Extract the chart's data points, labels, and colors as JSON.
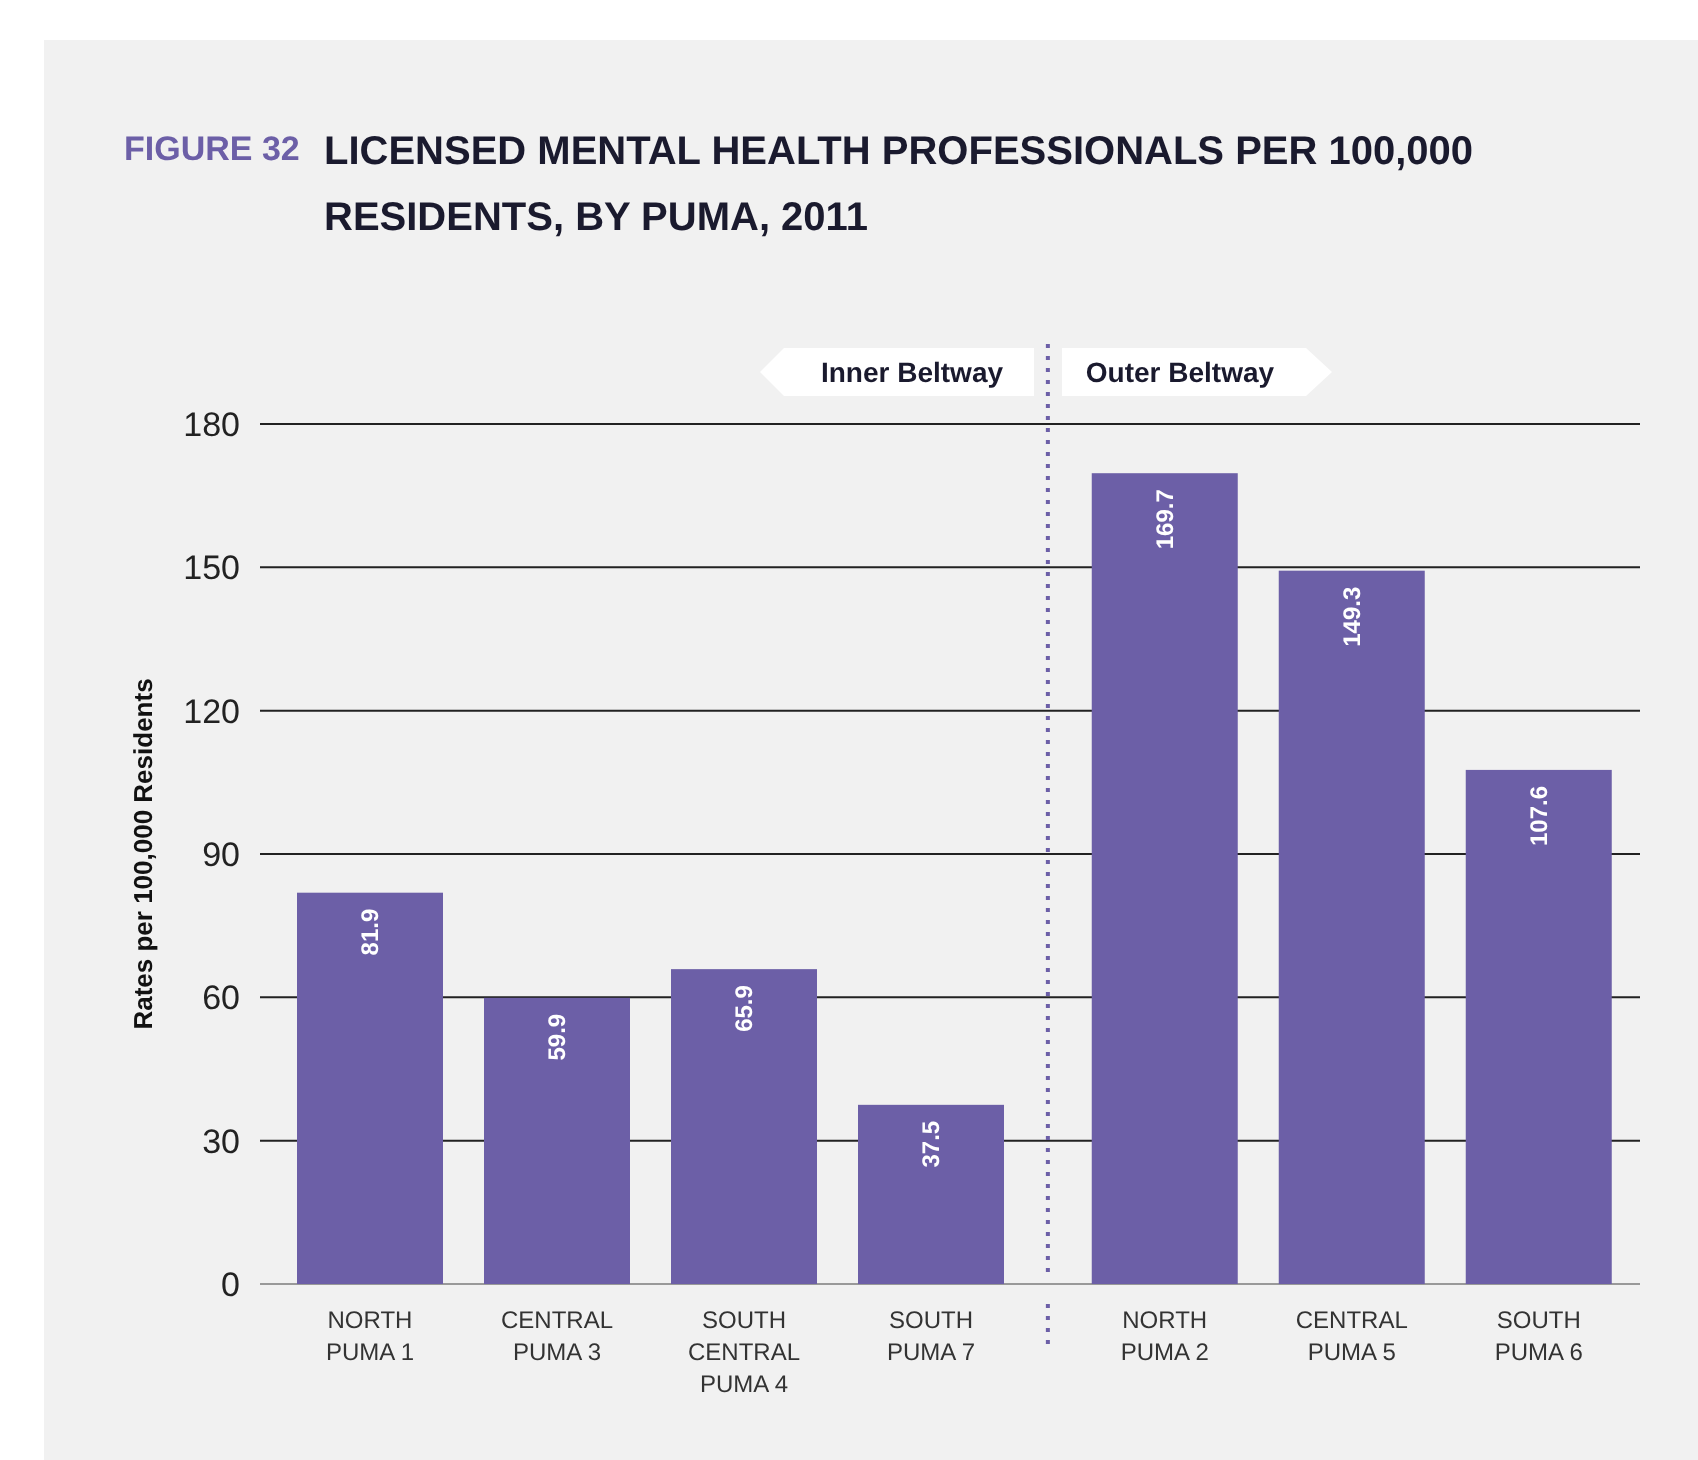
{
  "chart_data": {
    "type": "bar",
    "title": "LICENSED MENTAL HEALTH PROFESSIONALS PER 100,000 RESIDENTS, BY PUMA, 2011",
    "annotations": [
      "FIGURE 32",
      "Inner Beltway",
      "Outer Beltway"
    ],
    "ylabel": "Rates per 100,000 Residents",
    "categories": [
      "NORTH\nPUMA 1",
      "CENTRAL\nPUMA 3",
      "SOUTH\nCENTRAL\nPUMA 4",
      "SOUTH\nPUMA 7",
      "NORTH\nPUMA 2",
      "CENTRAL\nPUMA 5",
      "SOUTH\nPUMA 6"
    ],
    "values": [
      81.9,
      59.9,
      65.9,
      37.5,
      169.7,
      149.3,
      107.6
    ],
    "color": "#6c5fa7",
    "ylim": [
      0,
      180
    ],
    "yticks": [
      0,
      30,
      60,
      90,
      120,
      150,
      180
    ],
    "grid": "y",
    "data_labels": true
  }
}
